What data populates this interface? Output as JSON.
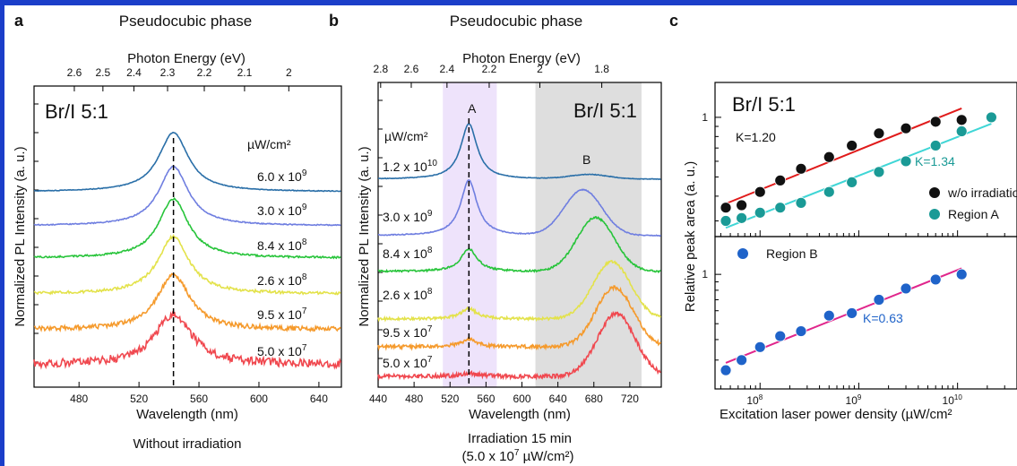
{
  "figure": {
    "panels": [
      {
        "label": "a",
        "title": "Pseudocubic phase",
        "top_axis_label": "Photon Energy (eV)",
        "top_ticks": [
          "2.6",
          "2.5",
          "2.4",
          "2.3",
          "2.2",
          "2.1",
          "2"
        ],
        "xlabel": "Wavelength (nm)",
        "ylabel": "Normalized PL Intensity (a. u.)",
        "x_ticks": [
          "480",
          "520",
          "560",
          "600",
          "640"
        ],
        "composition": "Br/I 5:1",
        "unit_label": "µW/cm²",
        "caption": "Without irradiation",
        "spectra": [
          {
            "mantissa": "6.0 x 10",
            "exponent": "9",
            "color": "#2a6fa8"
          },
          {
            "mantissa": "3.0 x 10",
            "exponent": "9",
            "color": "#6f7ee0"
          },
          {
            "mantissa": "8.4 x 10",
            "exponent": "8",
            "color": "#27c43a"
          },
          {
            "mantissa": "2.6 x 10",
            "exponent": "8",
            "color": "#e3e24a"
          },
          {
            "mantissa": "9.5 x 10",
            "exponent": "7",
            "color": "#f59a2c"
          },
          {
            "mantissa": "5.0 x 10",
            "exponent": "7",
            "color": "#f0484f"
          }
        ]
      },
      {
        "label": "b",
        "title": "Pseudocubic phase",
        "top_axis_label": "Photon Energy (eV)",
        "top_ticks": [
          "2.8",
          "2.6",
          "2.4",
          "2.2",
          "2",
          "1.8"
        ],
        "xlabel": "Wavelength (nm)",
        "ylabel": "Normalized PL Intensity (a. u.)",
        "x_ticks": [
          "440",
          "480",
          "520",
          "560",
          "600",
          "640",
          "680",
          "720"
        ],
        "composition": "Br/I 5:1",
        "unit_label": "µW/cm²",
        "region_a": "A",
        "region_b": "B",
        "caption_line1": "Irradiation 15 min",
        "caption_line2_mantissa": "(5.0 x 10",
        "caption_line2_exponent": "7",
        "caption_line2_unit": " µW/cm²)",
        "spectra": [
          {
            "mantissa": "1.2 x 10",
            "exponent": "10",
            "color": "#2a6fa8"
          },
          {
            "mantissa": "3.0 x 10",
            "exponent": "9",
            "color": "#6f7ee0"
          },
          {
            "mantissa": "8.4 x 10",
            "exponent": "8",
            "color": "#27c43a"
          },
          {
            "mantissa": "2.6 x 10",
            "exponent": "8",
            "color": "#e3e24a"
          },
          {
            "mantissa": "9.5 x 10",
            "exponent": "7",
            "color": "#f59a2c"
          },
          {
            "mantissa": "5.0 x 10",
            "exponent": "7",
            "color": "#f0484f"
          }
        ]
      },
      {
        "label": "c",
        "composition": "Br/I 5:1",
        "ylabel": "Relative peak area (a. u.)",
        "xlabel": "Excitation laser power density (µW/cm²",
        "x_tick_base": "10",
        "x_tick_exponents": [
          "8",
          "9",
          "10"
        ],
        "y_tick_top": "1",
        "y_tick_bottom": "1",
        "k_wo": "K=1.20",
        "k_a": "K=1.34",
        "k_b": "K=0.63",
        "legend_wo": "w/o irradiation",
        "legend_a": "Region A",
        "legend_b": "Region B"
      }
    ]
  },
  "chart_data": [
    {
      "type": "line",
      "panel": "a",
      "x_range_nm": [
        450,
        655
      ],
      "peak_wavelength_nm": 543,
      "series_note": "stacked normalized PL spectra, one per excitation power density",
      "series": [
        {
          "name": "6.0 x 10^9 µW/cm²",
          "peak_nm": 543,
          "fwhm_nm": 24
        },
        {
          "name": "3.0 x 10^9 µW/cm²",
          "peak_nm": 543,
          "fwhm_nm": 24
        },
        {
          "name": "8.4 x 10^8 µW/cm²",
          "peak_nm": 543,
          "fwhm_nm": 24
        },
        {
          "name": "2.6 x 10^8 µW/cm²",
          "peak_nm": 543,
          "fwhm_nm": 25
        },
        {
          "name": "9.5 x 10^7 µW/cm²",
          "peak_nm": 543,
          "fwhm_nm": 26
        },
        {
          "name": "5.0 x 10^7 µW/cm²",
          "peak_nm": 543,
          "fwhm_nm": 30
        }
      ]
    },
    {
      "type": "line",
      "panel": "b",
      "x_range_nm": [
        440,
        755
      ],
      "shaded_region_A_nm": [
        512,
        572
      ],
      "shaded_region_B_nm": [
        615,
        733
      ],
      "series": [
        {
          "name": "1.2 x 10^10 µW/cm²",
          "peakA_nm": 541,
          "peakA_rel": 1.0,
          "peakB_nm": 675,
          "peakB_rel": 0.08
        },
        {
          "name": "3.0 x 10^9 µW/cm²",
          "peakA_nm": 541,
          "peakA_rel": 1.0,
          "peakB_nm": 668,
          "peakB_rel": 0.82
        },
        {
          "name": "8.4 x 10^8 µW/cm²",
          "peakA_nm": 541,
          "peakA_rel": 0.42,
          "peakB_nm": 682,
          "peakB_rel": 1.0
        },
        {
          "name": "2.6 x 10^8 µW/cm²",
          "peakA_nm": 541,
          "peakA_rel": 0.18,
          "peakB_nm": 700,
          "peakB_rel": 1.0
        },
        {
          "name": "9.5 x 10^7 µW/cm²",
          "peakA_nm": 541,
          "peakA_rel": 0.12,
          "peakB_nm": 703,
          "peakB_rel": 1.0
        },
        {
          "name": "5.0 x 10^7 µW/cm²",
          "peakA_nm": 541,
          "peakA_rel": 0.05,
          "peakB_nm": 705,
          "peakB_rel": 1.0
        }
      ]
    },
    {
      "type": "scatter",
      "panel": "c",
      "x_scale": "log",
      "y_scale": "log",
      "x_range": [
        35000000,
        40000000000
      ],
      "upper_y_range": [
        0.25,
        1.5
      ],
      "lower_y_range": [
        0.2,
        1.7
      ],
      "series": [
        {
          "name": "w/o irradiation",
          "color": "#111111",
          "slope": 1.2,
          "x": [
            45000000,
            65000000,
            100000000,
            160000000,
            260000000,
            500000000,
            850000000,
            1600000000,
            3000000000,
            6000000000,
            11000000000
          ],
          "y": [
            0.35,
            0.36,
            0.42,
            0.48,
            0.55,
            0.63,
            0.72,
            0.83,
            0.88,
            0.95,
            0.97
          ]
        },
        {
          "name": "Region A",
          "color": "#1a9a96",
          "slope": 1.34,
          "x": [
            45000000,
            65000000,
            100000000,
            160000000,
            260000000,
            500000000,
            850000000,
            1600000000,
            3000000000,
            6000000000,
            11000000000,
            22000000000
          ],
          "y": [
            0.3,
            0.31,
            0.33,
            0.35,
            0.37,
            0.42,
            0.47,
            0.53,
            0.6,
            0.72,
            0.85,
            1.0
          ]
        },
        {
          "name": "Region B",
          "color": "#1f63c9",
          "slope": 0.63,
          "x": [
            45000000,
            65000000,
            100000000,
            160000000,
            260000000,
            500000000,
            850000000,
            1600000000,
            3000000000,
            6000000000,
            11000000000
          ],
          "y": [
            0.26,
            0.3,
            0.36,
            0.42,
            0.45,
            0.56,
            0.58,
            0.7,
            0.82,
            0.93,
            1.0
          ]
        }
      ]
    }
  ]
}
